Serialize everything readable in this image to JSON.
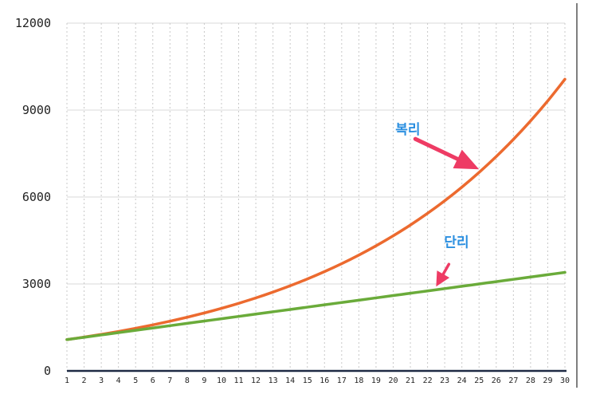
{
  "chart_data": {
    "type": "line",
    "x": [
      1,
      2,
      3,
      4,
      5,
      6,
      7,
      8,
      9,
      10,
      11,
      12,
      13,
      14,
      15,
      16,
      17,
      18,
      19,
      20,
      21,
      22,
      23,
      24,
      25,
      26,
      27,
      28,
      29,
      30
    ],
    "xticks": [
      "1",
      "2",
      "3",
      "4",
      "5",
      "6",
      "7",
      "8",
      "9",
      "10",
      "11",
      "12",
      "13",
      "14",
      "15",
      "16",
      "17",
      "18",
      "19",
      "20",
      "21",
      "22",
      "23",
      "24",
      "25",
      "26",
      "27",
      "28",
      "29",
      "30"
    ],
    "yticks": [
      "0",
      "3000",
      "6000",
      "9000",
      "12000"
    ],
    "ylim": [
      0,
      12000
    ],
    "grid": true,
    "legend": "none",
    "series": [
      {
        "name": "복리",
        "color": "#ec6a2f",
        "values": [
          1080,
          1166,
          1260,
          1360,
          1469,
          1587,
          1714,
          1851,
          1999,
          2159,
          2332,
          2518,
          2720,
          2937,
          3172,
          3426,
          3700,
          3996,
          4316,
          4661,
          5034,
          5437,
          5871,
          6341,
          6848,
          7396,
          7988,
          8627,
          9317,
          10063
        ]
      },
      {
        "name": "단리",
        "color": "#6aab3a",
        "values": [
          1080,
          1160,
          1240,
          1320,
          1400,
          1480,
          1560,
          1640,
          1720,
          1800,
          1880,
          1960,
          2040,
          2120,
          2200,
          2280,
          2360,
          2440,
          2520,
          2600,
          2680,
          2760,
          2840,
          2920,
          3000,
          3080,
          3160,
          3240,
          3320,
          3400
        ]
      }
    ],
    "annotations": [
      {
        "text": "복리",
        "series": "복리",
        "points_to_x": 25,
        "arrow_color": "#ee3b64"
      },
      {
        "text": "단리",
        "series": "단리",
        "points_to_x": 22.5,
        "arrow_color": "#ee3b64"
      }
    ]
  }
}
